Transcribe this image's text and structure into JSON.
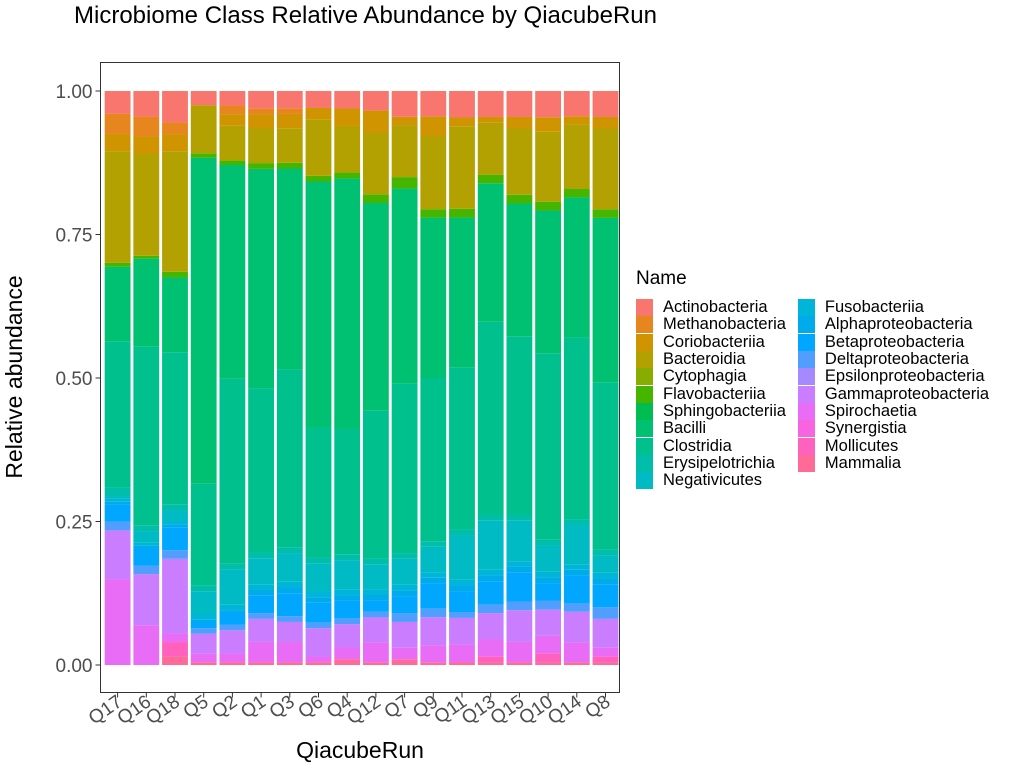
{
  "chart_data": {
    "type": "bar",
    "stacked": true,
    "title": "Microbiome Class Relative Abundance by QiacubeRun",
    "xlabel": "QiacubeRun",
    "ylabel": "Relative abundance",
    "ylim": [
      0,
      1
    ],
    "yticks": [
      "0.00",
      "0.25",
      "0.50",
      "0.75",
      "1.00"
    ],
    "grid": false,
    "legend_title": "Name",
    "legend_position": "right",
    "categories": [
      "Q17",
      "Q16",
      "Q18",
      "Q5",
      "Q2",
      "Q1",
      "Q3",
      "Q6",
      "Q4",
      "Q12",
      "Q7",
      "Q9",
      "Q11",
      "Q13",
      "Q15",
      "Q10",
      "Q14",
      "Q8"
    ],
    "series": [
      {
        "name": "Actinobacteria",
        "color": "#F8766D",
        "values": [
          0.04,
          0.045,
          0.055,
          0.025,
          0.025,
          0.03,
          0.03,
          0.03,
          0.03,
          0.035,
          0.045,
          0.045,
          0.045,
          0.045,
          0.045,
          0.045,
          0.045,
          0.045
        ]
      },
      {
        "name": "Methanobacteria",
        "color": "#E7851E",
        "values": [
          0.035,
          0.035,
          0.02,
          0.0,
          0.015,
          0.01,
          0.01,
          0.0,
          0.0,
          0.0,
          0.0,
          0.0,
          0.0,
          0.0,
          0.0,
          0.0,
          0.0,
          0.0
        ]
      },
      {
        "name": "Coriobacteriia",
        "color": "#D09400",
        "values": [
          0.03,
          0.03,
          0.03,
          0.0,
          0.02,
          0.025,
          0.025,
          0.02,
          0.03,
          0.04,
          0.015,
          0.035,
          0.015,
          0.01,
          0.02,
          0.025,
          0.015,
          0.02
        ]
      },
      {
        "name": "Bacteroidia",
        "color": "#B2A100",
        "values": [
          0.195,
          0.18,
          0.21,
          0.085,
          0.06,
          0.06,
          0.06,
          0.1,
          0.08,
          0.11,
          0.09,
          0.13,
          0.14,
          0.09,
          0.115,
          0.12,
          0.115,
          0.14
        ]
      },
      {
        "name": "Cytophagia",
        "color": "#89AC00",
        "values": [
          0.0,
          0.0,
          0.0,
          0.0,
          0.0,
          0.0,
          0.0,
          0.0,
          0.0,
          0.0,
          0.0,
          0.0,
          0.0,
          0.0,
          0.0,
          0.0,
          0.0,
          0.0
        ]
      },
      {
        "name": "Flavobacteriia",
        "color": "#45B500",
        "values": [
          0.007,
          0.005,
          0.01,
          0.008,
          0.008,
          0.01,
          0.01,
          0.01,
          0.01,
          0.015,
          0.02,
          0.015,
          0.015,
          0.015,
          0.015,
          0.015,
          0.015,
          0.015
        ]
      },
      {
        "name": "Sphingobacteriia",
        "color": "#00BC51",
        "values": [
          0.0,
          0.0,
          0.0,
          0.0,
          0.0,
          0.0,
          0.0,
          0.0,
          0.0,
          0.0,
          0.0,
          0.0,
          0.0,
          0.0,
          0.0,
          0.0,
          0.0,
          0.0
        ]
      },
      {
        "name": "Bacilli",
        "color": "#00C071",
        "values": [
          0.13,
          0.155,
          0.13,
          0.575,
          0.37,
          0.38,
          0.35,
          0.435,
          0.43,
          0.37,
          0.34,
          0.285,
          0.255,
          0.24,
          0.23,
          0.245,
          0.25,
          0.285
        ]
      },
      {
        "name": "Clostridia",
        "color": "#00C08E",
        "values": [
          0.255,
          0.315,
          0.265,
          0.18,
          0.32,
          0.285,
          0.31,
          0.23,
          0.215,
          0.265,
          0.295,
          0.29,
          0.275,
          0.335,
          0.31,
          0.32,
          0.325,
          0.29
        ]
      },
      {
        "name": "Erysipelotrichia",
        "color": "#00BEA9",
        "values": [
          0.015,
          0.01,
          0.01,
          0.01,
          0.01,
          0.01,
          0.01,
          0.01,
          0.01,
          0.01,
          0.01,
          0.01,
          0.01,
          0.01,
          0.01,
          0.01,
          0.01,
          0.01
        ]
      },
      {
        "name": "Negativicutes",
        "color": "#00BBC3",
        "values": [
          0.005,
          0.02,
          0.02,
          0.04,
          0.06,
          0.045,
          0.05,
          0.05,
          0.05,
          0.045,
          0.045,
          0.045,
          0.075,
          0.085,
          0.07,
          0.045,
          0.07,
          0.03
        ]
      },
      {
        "name": "Fusobacteriia",
        "color": "#00B6D8",
        "values": [
          0.005,
          0.005,
          0.005,
          0.01,
          0.01,
          0.01,
          0.01,
          0.01,
          0.01,
          0.01,
          0.01,
          0.01,
          0.01,
          0.01,
          0.01,
          0.01,
          0.01,
          0.01
        ]
      },
      {
        "name": "Alphaproteobacteria",
        "color": "#00ABEB",
        "values": [
          0.005,
          0.005,
          0.005,
          0.005,
          0.005,
          0.01,
          0.01,
          0.01,
          0.01,
          0.01,
          0.01,
          0.01,
          0.01,
          0.01,
          0.01,
          0.01,
          0.01,
          0.01
        ]
      },
      {
        "name": "Betaproteobacteria",
        "color": "#00A6FF",
        "values": [
          0.03,
          0.03,
          0.04,
          0.01,
          0.02,
          0.03,
          0.04,
          0.035,
          0.03,
          0.02,
          0.03,
          0.045,
          0.035,
          0.04,
          0.05,
          0.03,
          0.05,
          0.04
        ]
      },
      {
        "name": "Deltaproteobacteria",
        "color": "#529EFF",
        "values": [
          0.015,
          0.015,
          0.015,
          0.01,
          0.01,
          0.01,
          0.01,
          0.01,
          0.01,
          0.01,
          0.015,
          0.015,
          0.01,
          0.015,
          0.015,
          0.015,
          0.015,
          0.02
        ]
      },
      {
        "name": "Epsilonproteobacteria",
        "color": "#A58AFF",
        "values": [
          0.0,
          0.0,
          0.0,
          0.0,
          0.0,
          0.0,
          0.0,
          0.0,
          0.0,
          0.0,
          0.0,
          0.0,
          0.0,
          0.0,
          0.0,
          0.0,
          0.0,
          0.0
        ]
      },
      {
        "name": "Gammaproteobacteria",
        "color": "#CA7EFF",
        "values": [
          0.085,
          0.09,
          0.13,
          0.035,
          0.04,
          0.04,
          0.035,
          0.05,
          0.04,
          0.045,
          0.045,
          0.05,
          0.045,
          0.045,
          0.055,
          0.045,
          0.055,
          0.05
        ]
      },
      {
        "name": "Spirochaetia",
        "color": "#E86CF5",
        "values": [
          0.15,
          0.07,
          0.015,
          0.015,
          0.015,
          0.035,
          0.035,
          0.01,
          0.02,
          0.035,
          0.02,
          0.03,
          0.03,
          0.03,
          0.035,
          0.03,
          0.035,
          0.015
        ]
      },
      {
        "name": "Synergistia",
        "color": "#F863DF",
        "values": [
          0.0,
          0.0,
          0.0,
          0.0,
          0.0,
          0.0,
          0.0,
          0.0,
          0.0,
          0.0,
          0.0,
          0.0,
          0.0,
          0.0,
          0.0,
          0.0,
          0.0,
          0.0
        ]
      },
      {
        "name": "Mollicutes",
        "color": "#FF62BE",
        "values": [
          0.0,
          0.0,
          0.025,
          0.0,
          0.0,
          0.0,
          0.0,
          0.0,
          0.0,
          0.0,
          0.0,
          0.0,
          0.0,
          0.01,
          0.0,
          0.015,
          0.0,
          0.01
        ]
      },
      {
        "name": "Mammalia",
        "color": "#FF6A98",
        "values": [
          0.0,
          0.0,
          0.015,
          0.005,
          0.005,
          0.005,
          0.005,
          0.005,
          0.01,
          0.005,
          0.01,
          0.005,
          0.005,
          0.005,
          0.005,
          0.005,
          0.005,
          0.005
        ]
      }
    ]
  }
}
